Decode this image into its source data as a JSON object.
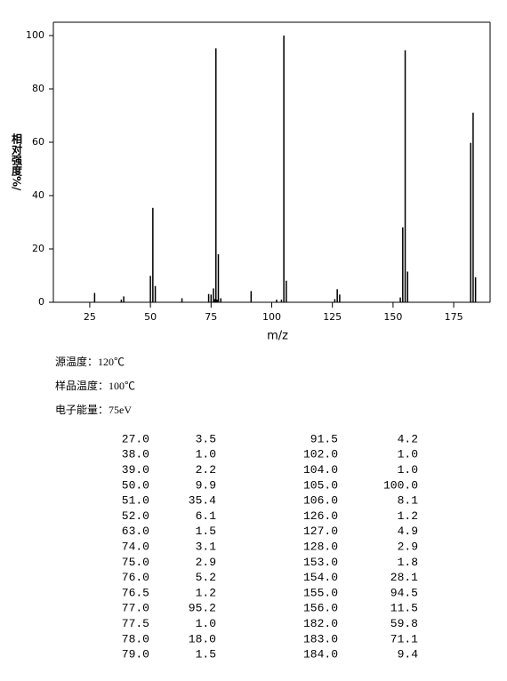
{
  "chart_data": {
    "type": "bar",
    "ylabel": "相对强度%/",
    "xlabel": "m/z",
    "x": [
      27,
      38,
      39,
      50,
      51,
      52,
      63,
      74,
      75,
      76,
      76.5,
      77,
      77.5,
      78,
      79,
      91.5,
      102,
      104,
      105,
      106,
      126,
      127,
      128,
      153,
      154,
      155,
      156,
      182,
      183,
      184
    ],
    "values": [
      3.5,
      1.0,
      2.2,
      9.9,
      35.4,
      6.1,
      1.5,
      3.1,
      2.9,
      5.2,
      1.2,
      95.2,
      1.0,
      18.0,
      1.5,
      4.2,
      1.0,
      1.0,
      100.0,
      8.1,
      1.2,
      4.9,
      2.9,
      1.8,
      28.1,
      94.5,
      11.5,
      59.8,
      71.1,
      9.4
    ],
    "color": "#000000",
    "xlim": [
      10,
      190
    ],
    "xticks": [
      25,
      50,
      75,
      100,
      125,
      150,
      175
    ],
    "ylim": [
      0,
      105
    ],
    "yticks": [
      0,
      20,
      40,
      60,
      80,
      100
    ]
  },
  "info": [
    "源温度：120℃",
    "样品温度：100℃",
    "电子能量：75eV"
  ],
  "table": {
    "rows": [
      [
        "27.0",
        "3.5",
        "91.5",
        "4.2"
      ],
      [
        "38.0",
        "1.0",
        "102.0",
        "1.0"
      ],
      [
        "39.0",
        "2.2",
        "104.0",
        "1.0"
      ],
      [
        "50.0",
        "9.9",
        "105.0",
        "100.0"
      ],
      [
        "51.0",
        "35.4",
        "106.0",
        "8.1"
      ],
      [
        "52.0",
        "6.1",
        "126.0",
        "1.2"
      ],
      [
        "63.0",
        "1.5",
        "127.0",
        "4.9"
      ],
      [
        "74.0",
        "3.1",
        "128.0",
        "2.9"
      ],
      [
        "75.0",
        "2.9",
        "153.0",
        "1.8"
      ],
      [
        "76.0",
        "5.2",
        "154.0",
        "28.1"
      ],
      [
        "76.5",
        "1.2",
        "155.0",
        "94.5"
      ],
      [
        "77.0",
        "95.2",
        "156.0",
        "11.5"
      ],
      [
        "77.5",
        "1.0",
        "182.0",
        "59.8"
      ],
      [
        "78.0",
        "18.0",
        "183.0",
        "71.1"
      ],
      [
        "79.0",
        "1.5",
        "184.0",
        "9.4"
      ]
    ]
  }
}
